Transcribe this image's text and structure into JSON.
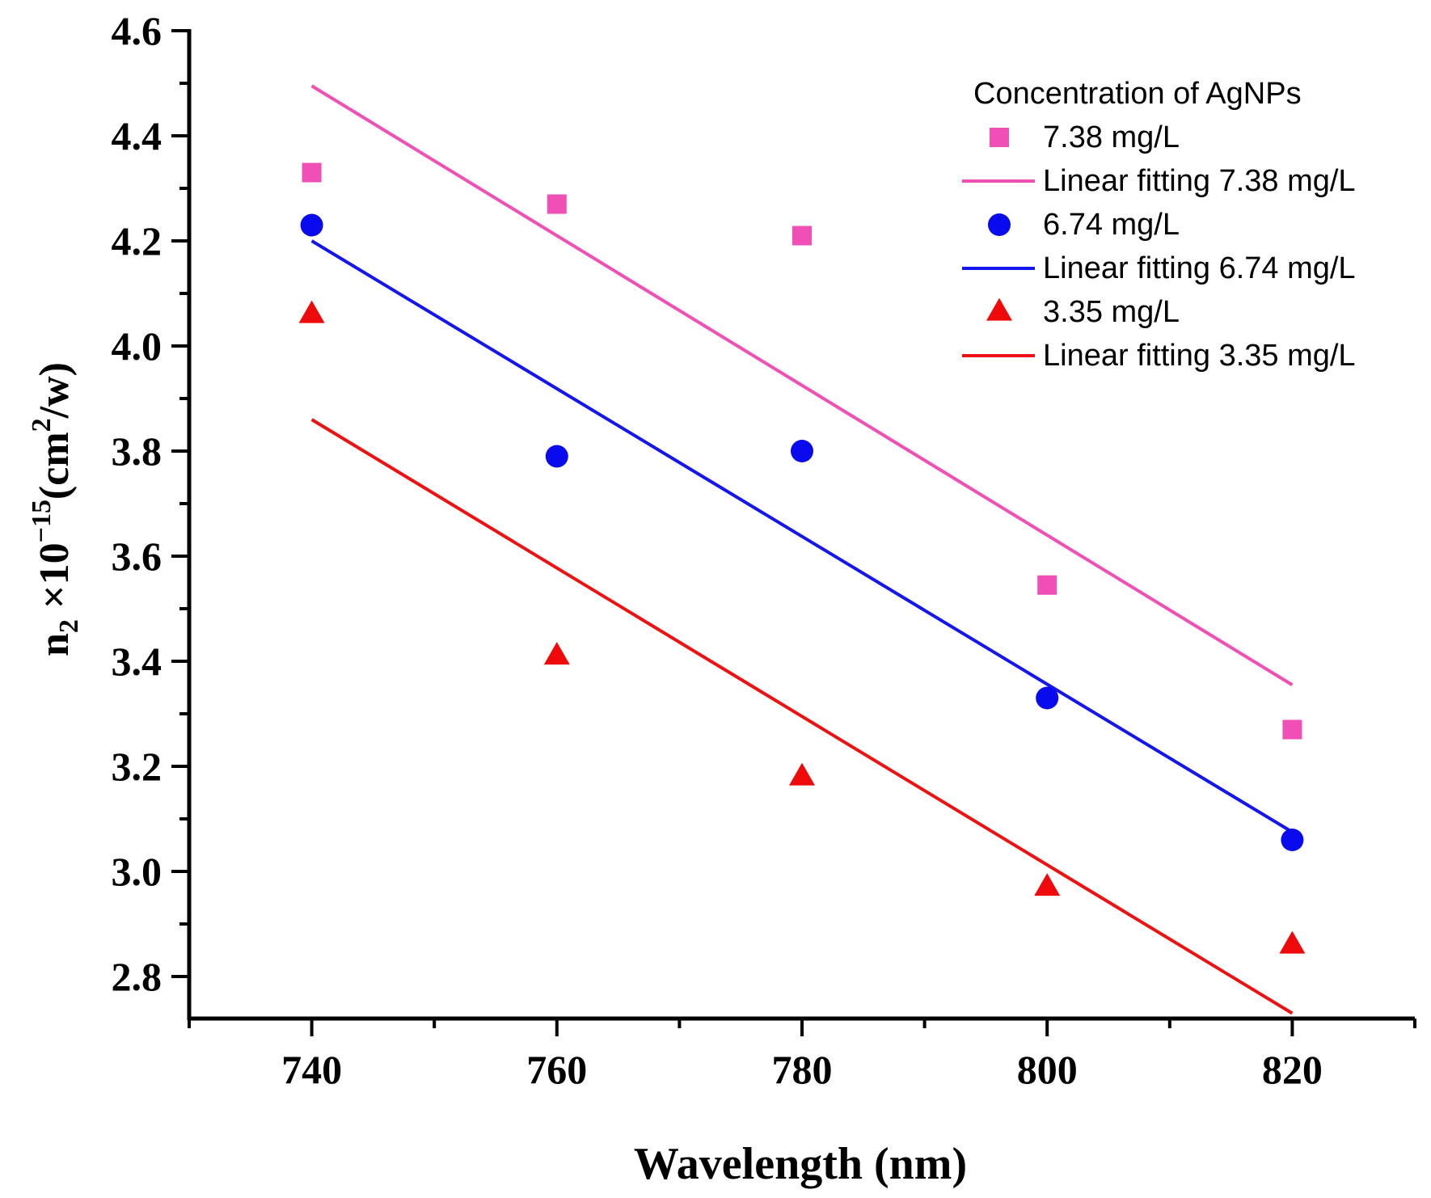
{
  "chart_data": {
    "type": "scatter",
    "title": "",
    "xlabel": "Wavelength (nm)",
    "ylabel": {
      "base": "n",
      "base_sub": "2",
      "mult": " ×10",
      "exp": "−15",
      "unit_open": "(cm",
      "unit_sup": "2",
      "unit_close": "/w)"
    },
    "xlim": [
      730,
      830
    ],
    "ylim": [
      2.72,
      4.6
    ],
    "x_ticks": [
      740,
      760,
      780,
      800,
      820
    ],
    "x_tick_labels": [
      "740",
      "760",
      "780",
      "800",
      "820"
    ],
    "x_minor_step": 10,
    "y_ticks": [
      2.8,
      3.0,
      3.2,
      3.4,
      3.6,
      3.8,
      4.0,
      4.2,
      4.4,
      4.6
    ],
    "y_tick_labels": [
      "2.8",
      "3.0",
      "3.2",
      "3.4",
      "3.6",
      "3.8",
      "4.0",
      "4.2",
      "4.4",
      "4.6"
    ],
    "y_minor_step": 0.1,
    "grid": false,
    "legend_position": "top-right",
    "legend_title": "Concentration of AgNPs",
    "series": [
      {
        "name": "7.38 mg/L",
        "marker": "square",
        "color": "#f04fb6",
        "x": [
          740,
          760,
          780,
          800,
          820
        ],
        "values": [
          4.33,
          4.27,
          4.21,
          3.545,
          3.27
        ],
        "fit_name": "Linear fitting 7.38 mg/L",
        "fit_color": "#f04fb6",
        "fit": {
          "x": [
            740,
            820
          ],
          "y": [
            4.495,
            3.355
          ]
        }
      },
      {
        "name": "6.74 mg/L",
        "marker": "circle",
        "color": "#0a0aee",
        "x": [
          740,
          760,
          780,
          800,
          820
        ],
        "values": [
          4.23,
          3.79,
          3.8,
          3.33,
          3.06
        ],
        "fit_name": "Linear fitting 6.74 mg/L",
        "fit_color": "#1515ee",
        "fit": {
          "x": [
            740,
            820
          ],
          "y": [
            4.2,
            3.075
          ]
        }
      },
      {
        "name": "3.35 mg/L",
        "marker": "triangle",
        "color": "#ee0a0a",
        "x": [
          740,
          760,
          780,
          800,
          820
        ],
        "values": [
          4.06,
          3.41,
          3.18,
          2.97,
          2.86
        ],
        "fit_name": "Linear fitting 3.35 mg/L",
        "fit_color": "#ee1111",
        "fit": {
          "x": [
            740,
            820
          ],
          "y": [
            3.86,
            2.73
          ]
        }
      }
    ]
  }
}
